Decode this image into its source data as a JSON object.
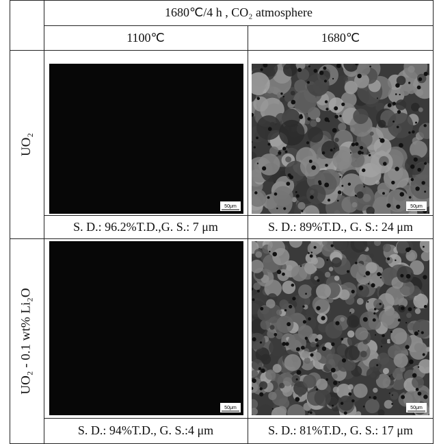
{
  "header": {
    "title": "1680℃/4 h , CO₂ atmosphere",
    "columns": [
      "1100℃",
      "1680℃"
    ]
  },
  "rows": [
    {
      "label": "UO₂",
      "images": [
        {
          "scale_bar": "50μm"
        },
        {
          "scale_bar": "50μm"
        }
      ],
      "captions": [
        "S. D.: 96.2%T.D.,G. S.: 7 μm",
        "S. D.: 89%T.D., G. S.: 24 μm"
      ]
    },
    {
      "label": "UO₂ - 0.1 wt% Li₂O",
      "images": [
        {
          "scale_bar": "50μm"
        },
        {
          "scale_bar": "50μm"
        }
      ],
      "captions": [
        "S. D.: 94%T.D., G. S.:4 μm",
        "S. D.: 81%T.D., G. S.: 17 μm"
      ]
    }
  ]
}
